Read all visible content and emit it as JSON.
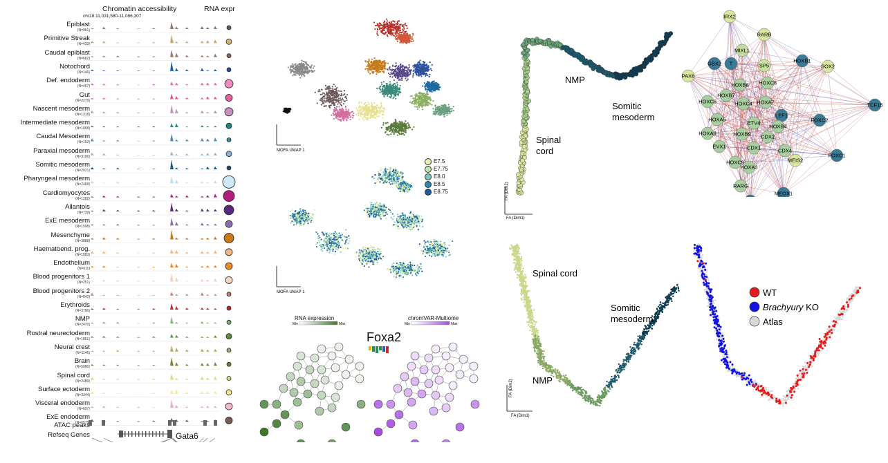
{
  "panelA": {
    "title_chromatin": "Chromatin accessibility",
    "title_rna": "RNA expr",
    "coords": "chr18:11,031,580-11,086,307",
    "tracks": [
      {
        "name": "Epiblast",
        "n": "(N=961)",
        "color": "#8c7b6b",
        "dot": "#6b5a4a",
        "size": 3
      },
      {
        "name": "Primitive Streak",
        "n": "(N=433)",
        "color": "#c9a56a",
        "dot": "#d8b27a",
        "size": 4
      },
      {
        "name": "Caudal epiblast",
        "n": "(N=682)",
        "color": "#9b7a67",
        "dot": "#8b6a57",
        "size": 3
      },
      {
        "name": "Notochord",
        "n": "(N=146)",
        "color": "#1f5ea8",
        "dot": "#1f4f8c",
        "size": 3
      },
      {
        "name": "Def. endoderm",
        "n": "(N=467)",
        "color": "#e66fae",
        "dot": "#f08cc0",
        "size": 6
      },
      {
        "name": "Gut",
        "n": "(N=2279)",
        "color": "#e0528f",
        "dot": "#e8609a",
        "size": 5
      },
      {
        "name": "Nascent mesoderm",
        "n": "(N=1318)",
        "color": "#c58fbd",
        "dot": "#c790be",
        "size": 6
      },
      {
        "name": "Intermediate mesoderm",
        "n": "(N=1058)",
        "color": "#1f8f8a",
        "dot": "#1b8a85",
        "size": 4
      },
      {
        "name": "Caudal Mesoderm",
        "n": "(N=152)",
        "color": "#4a8fb0",
        "dot": "#3f86a8",
        "size": 3
      },
      {
        "name": "Paraxial mesoderm",
        "n": "(N=3196)",
        "color": "#8cb5d8",
        "dot": "#8ab0d5",
        "size": 4
      },
      {
        "name": "Somitic mesoderm",
        "n": "(N=2021)",
        "color": "#1d5a7a",
        "dot": "#1a5575",
        "size": 3
      },
      {
        "name": "Pharyngeal mesoderm",
        "n": "(N=2469)",
        "color": "#b8e0f2",
        "dot": "#cde9f6",
        "size": 9
      },
      {
        "name": "Cardiomyocytes",
        "n": "(N=1282)",
        "color": "#b5207f",
        "dot": "#b01f7c",
        "size": 8
      },
      {
        "name": "Allantois",
        "n": "(N=739)",
        "color": "#5c2d82",
        "dot": "#5a2a80",
        "size": 7
      },
      {
        "name": "ExE mesoderm",
        "n": "(N=1598)",
        "color": "#8a70b0",
        "dot": "#8a6fae",
        "size": 5
      },
      {
        "name": "Mesenchyme",
        "n": "(N=3888)",
        "color": "#c97a1c",
        "dot": "#c8781a",
        "size": 7
      },
      {
        "name": "Haematoend. prog.",
        "n": "(N=1083)",
        "color": "#f2b584",
        "dot": "#f1b482",
        "size": 5
      },
      {
        "name": "Endothelium",
        "n": "(N=611)",
        "color": "#ee8a2a",
        "dot": "#ec8626",
        "size": 5
      },
      {
        "name": "Blood progenitors 1",
        "n": "(N=251)",
        "color": "#f5cfc0",
        "dot": "#f7d6c8",
        "size": 5
      },
      {
        "name": "Blood progenitors 2",
        "n": "(N=642)",
        "color": "#c9866d",
        "dot": "#c4806a",
        "size": 3
      },
      {
        "name": "Erythroids",
        "n": "(N=3796)",
        "color": "#c72a2a",
        "dot": "#c22626",
        "size": 3
      },
      {
        "name": "NMP",
        "n": "(N=2470)",
        "color": "#7fbf6b",
        "dot": "#78b866",
        "size": 3
      },
      {
        "name": "Rostral neurectoderm",
        "n": "(N=1851)",
        "color": "#5e9440",
        "dot": "#5b913d",
        "size": 4
      },
      {
        "name": "Neural crest",
        "n": "(N=1146)",
        "color": "#b6ad6a",
        "dot": "#b0a764",
        "size": 3
      },
      {
        "name": "Brain",
        "n": "(N=5086)",
        "color": "#6f8a40",
        "dot": "#6b863c",
        "size": 3
      },
      {
        "name": "Spinal cord",
        "n": "(N=2489)",
        "color": "#cde07a",
        "dot": "#cfe07c",
        "size": 3
      },
      {
        "name": "Surface ectoderm",
        "n": "(N=3344)",
        "color": "#f4ec86",
        "dot": "#f2e982",
        "size": 4
      },
      {
        "name": "Visceral endoderm",
        "n": "(N=697)",
        "color": "#f3a8c8",
        "dot": "#f5b4cf",
        "size": 5
      },
      {
        "name": "ExE endoderm",
        "n": "(N=6575)",
        "color": "#7a5a54",
        "dot": "#7a5a54",
        "size": 5
      }
    ],
    "atac_label": "ATAC peaks",
    "refseq_label": "Refseq Genes",
    "gene_label": "Gata6"
  },
  "panelB": {
    "axis_x": "MOFA UMAP 1",
    "axis_y": "MOFA UMAP 2",
    "legend": [
      {
        "label": "E7.5",
        "color": "#e8efb0"
      },
      {
        "label": "E7.75",
        "color": "#c3e3a8"
      },
      {
        "label": "E8.0",
        "color": "#7fc6b8"
      },
      {
        "label": "E8.5",
        "color": "#2c86b4"
      },
      {
        "label": "E8.75",
        "color": "#1c5a9e"
      }
    ]
  },
  "panelC": {
    "rna_title": "RNA expression",
    "chromvar_title": "chromVAR-Multiome",
    "min_label": "Min",
    "max_label": "Max",
    "tf_name": "Foxa2",
    "rna_color": "#3e7a2c",
    "chromvar_color": "#a64de0"
  },
  "panelD": {
    "labels": {
      "nmp": "NMP",
      "somitic": "Somitic\nmesoderm",
      "spinal": "Spinal\ncord"
    },
    "axis_x": "FA (Dim1)",
    "axis_y": "FA (Dim2)"
  },
  "panelE": {
    "nodes": [
      {
        "id": "IRX2",
        "c": "#d8e6a0"
      },
      {
        "id": "RARB",
        "c": "#d8e6a0"
      },
      {
        "id": "MIXL1",
        "c": "#c2dba0"
      },
      {
        "id": "GBX2",
        "c": "#3b7a95"
      },
      {
        "id": "T",
        "c": "#3b7a95"
      },
      {
        "id": "SP5",
        "c": "#c9e2a0"
      },
      {
        "id": "HOXB1",
        "c": "#3b7a95"
      },
      {
        "id": "SOX2",
        "c": "#d8e6a0"
      },
      {
        "id": "PAX6",
        "c": "#d8e6a0"
      },
      {
        "id": "HOXB8",
        "c": "#a8cfa0"
      },
      {
        "id": "HOXC8",
        "c": "#a8cfa0"
      },
      {
        "id": "HOXB7",
        "c": "#a8cfa0"
      },
      {
        "id": "HOXC6",
        "c": "#a8cfa0"
      },
      {
        "id": "HOXC4",
        "c": "#a8cfa0"
      },
      {
        "id": "HOXA7",
        "c": "#a8cfa0"
      },
      {
        "id": "TCF15",
        "c": "#3b7a95"
      },
      {
        "id": "LEF1",
        "c": "#3b7a95"
      },
      {
        "id": "HOXA5",
        "c": "#a8cfa0"
      },
      {
        "id": "ETV4",
        "c": "#a8cfa0"
      },
      {
        "id": "HOXB4",
        "c": "#a8cfa0"
      },
      {
        "id": "FOXC2",
        "c": "#3b7a95"
      },
      {
        "id": "HOXA9",
        "c": "#a8cfa0"
      },
      {
        "id": "HOXB9",
        "c": "#a8cfa0"
      },
      {
        "id": "CDX2",
        "c": "#a8cfa0"
      },
      {
        "id": "EVX1",
        "c": "#a8cfa0"
      },
      {
        "id": "CDX1",
        "c": "#a8cfa0"
      },
      {
        "id": "CDX4",
        "c": "#a8cfa0"
      },
      {
        "id": "FOXC1",
        "c": "#3b7a95"
      },
      {
        "id": "HOXC9",
        "c": "#a8cfa0"
      },
      {
        "id": "HOXA3",
        "c": "#a8cfa0"
      },
      {
        "id": "MEIS2",
        "c": "#d8e6a0"
      },
      {
        "id": "RARG",
        "c": "#a8cfa0"
      },
      {
        "id": "MEOX1",
        "c": "#3b7a95"
      },
      {
        "id": "HES7",
        "c": "#3b7a95"
      }
    ]
  },
  "panelF": {
    "labels": {
      "spinal": "Spinal cord",
      "somitic": "Somitic\nmesoderm",
      "nmp": "NMP"
    },
    "axis_x": "FA (Dim1)",
    "axis_y": "FA (Dim2)"
  },
  "panelG": {
    "legend": [
      {
        "label": "WT",
        "color": "#e41a1c"
      },
      {
        "label_italic": "Brachyury",
        "label_rest": " KO",
        "color": "#1414e0"
      },
      {
        "label": "Atlas",
        "color": "#d9d9d9"
      }
    ]
  }
}
